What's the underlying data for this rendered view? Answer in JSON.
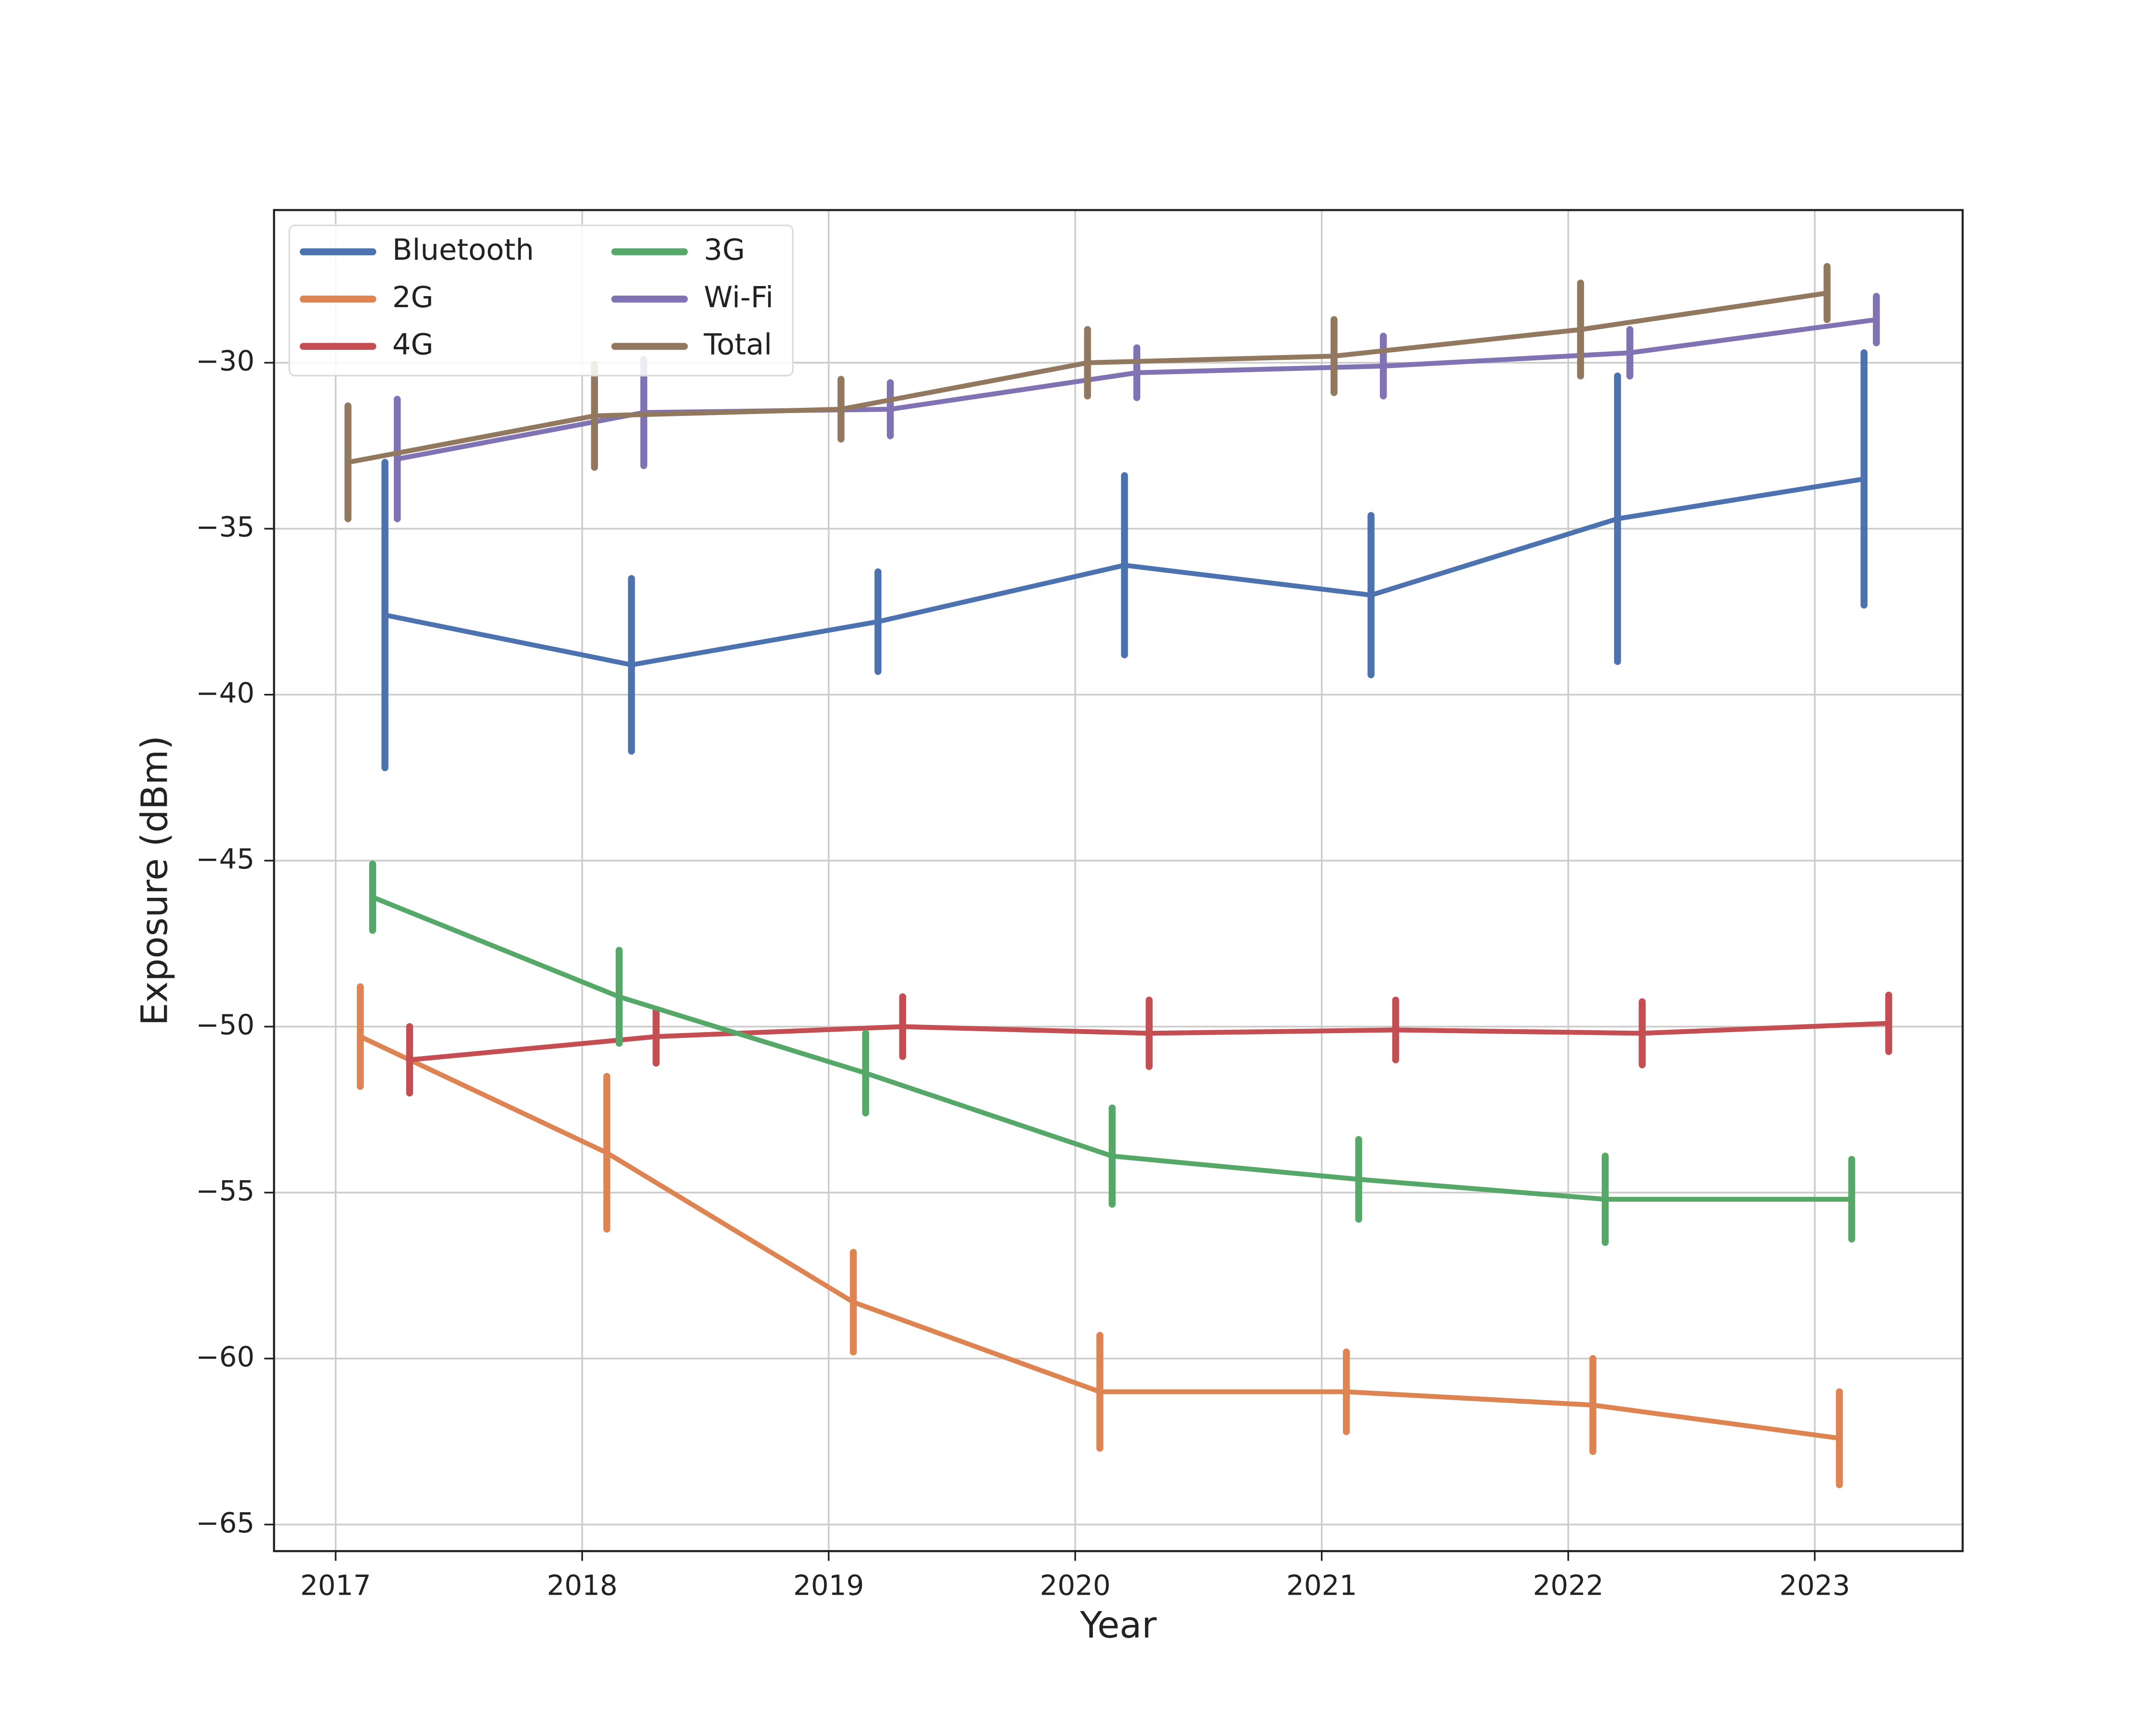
{
  "chart_data": {
    "type": "line",
    "x_label": "Year",
    "y_label": "Exposure (dBm)",
    "xlim": [
      2016.75,
      2023.6
    ],
    "ylim": [
      -65.8,
      -25.4
    ],
    "xticks": [
      2017,
      2018,
      2019,
      2020,
      2021,
      2022,
      2023
    ],
    "yticks": [
      {
        "value": -65,
        "label": "−65"
      },
      {
        "value": -60,
        "label": "−60"
      },
      {
        "value": -55,
        "label": "−55"
      },
      {
        "value": -50,
        "label": "−50"
      },
      {
        "value": -45,
        "label": "−45"
      },
      {
        "value": -40,
        "label": "−40"
      },
      {
        "value": -35,
        "label": "−35"
      },
      {
        "value": -30,
        "label": "−30"
      }
    ],
    "grid": true,
    "legend": "upper left",
    "series": [
      {
        "name": "Bluetooth",
        "color": "#4c72b0",
        "x": [
          2017.2,
          2018.2,
          2019.2,
          2020.2,
          2021.2,
          2022.2,
          2023.2
        ],
        "values": [
          -37.6,
          -39.1,
          -37.8,
          -36.1,
          -37.0,
          -34.7,
          -33.5
        ],
        "errors": [
          4.6,
          2.6,
          1.5,
          2.7,
          2.4,
          4.3,
          3.8
        ]
      },
      {
        "name": "2G",
        "color": "#dd8452",
        "x": [
          2017.1,
          2018.1,
          2019.1,
          2020.1,
          2021.1,
          2022.1,
          2023.1
        ],
        "values": [
          -50.3,
          -53.8,
          -58.3,
          -61.0,
          -61.0,
          -61.4,
          -62.4
        ],
        "errors": [
          1.5,
          2.3,
          1.5,
          1.7,
          1.2,
          1.4,
          1.4
        ]
      },
      {
        "name": "4G",
        "color": "#c44e52",
        "x": [
          2017.3,
          2018.3,
          2019.3,
          2020.3,
          2021.3,
          2022.3,
          2023.3
        ],
        "values": [
          -51.0,
          -50.3,
          -50.0,
          -50.2,
          -50.1,
          -50.2,
          -49.9
        ],
        "errors": [
          1.0,
          0.8,
          0.9,
          1.0,
          0.9,
          0.95,
          0.85
        ]
      },
      {
        "name": "3G",
        "color": "#55a868",
        "x": [
          2017.15,
          2018.15,
          2019.15,
          2020.15,
          2021.15,
          2022.15,
          2023.15
        ],
        "values": [
          -46.1,
          -49.1,
          -51.4,
          -53.9,
          -54.6,
          -55.2,
          -55.2
        ],
        "errors": [
          1.0,
          1.4,
          1.2,
          1.45,
          1.2,
          1.3,
          1.2
        ]
      },
      {
        "name": "Wi-Fi",
        "color": "#8172b3",
        "x": [
          2017.25,
          2018.25,
          2019.25,
          2020.25,
          2021.25,
          2022.25,
          2023.25
        ],
        "values": [
          -32.9,
          -31.5,
          -31.4,
          -30.3,
          -30.1,
          -29.7,
          -28.7
        ],
        "errors": [
          1.8,
          1.6,
          0.8,
          0.75,
          0.9,
          0.7,
          0.7
        ]
      },
      {
        "name": "Total",
        "color": "#937860",
        "x": [
          2017.05,
          2018.05,
          2019.05,
          2020.05,
          2021.05,
          2022.05,
          2023.05
        ],
        "values": [
          -33.0,
          -31.6,
          -31.4,
          -30.0,
          -29.8,
          -29.0,
          -27.9
        ],
        "errors": [
          1.7,
          1.55,
          0.9,
          1.0,
          1.1,
          1.4,
          0.8
        ]
      }
    ]
  }
}
